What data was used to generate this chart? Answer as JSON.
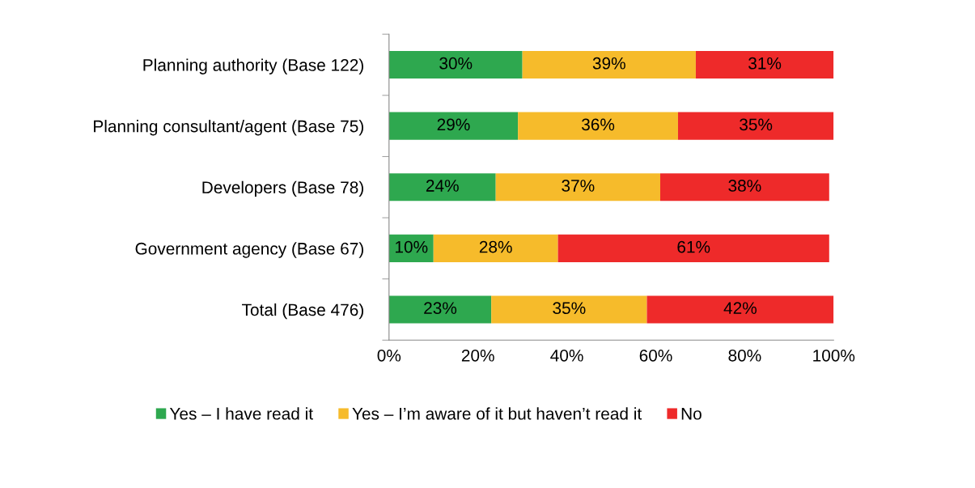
{
  "chart_data": {
    "type": "bar",
    "orientation": "horizontal",
    "stacked": true,
    "categories": [
      "Planning authority (Base 122)",
      "Planning consultant/agent (Base 75)",
      "Developers (Base 78)",
      "Government agency (Base 67)",
      "Total (Base 476)"
    ],
    "series": [
      {
        "name": "Yes – I have read it",
        "color": "#2ea84f",
        "values": [
          30,
          29,
          24,
          10,
          23
        ],
        "value_labels": [
          "30%",
          "29%",
          "24%",
          "10%",
          "23%"
        ]
      },
      {
        "name": "Yes – I’m aware of it but haven’t read it",
        "color": "#f6bb2b",
        "values": [
          39,
          36,
          37,
          28,
          35
        ],
        "value_labels": [
          "39%",
          "36%",
          "37%",
          "28%",
          "35%"
        ]
      },
      {
        "name": "No",
        "color": "#ee2a2a",
        "values": [
          31,
          35,
          38,
          61,
          42
        ],
        "value_labels": [
          "31%",
          "35%",
          "38%",
          "61%",
          "42%"
        ]
      }
    ],
    "xlim": [
      0,
      100
    ],
    "xticks": [
      {
        "value": 0,
        "label": "0%"
      },
      {
        "value": 20,
        "label": "20%"
      },
      {
        "value": 40,
        "label": "40%"
      },
      {
        "value": 60,
        "label": "60%"
      },
      {
        "value": 80,
        "label": "80%"
      },
      {
        "value": 100,
        "label": "100%"
      }
    ],
    "grid": false,
    "legend": "bottom"
  }
}
